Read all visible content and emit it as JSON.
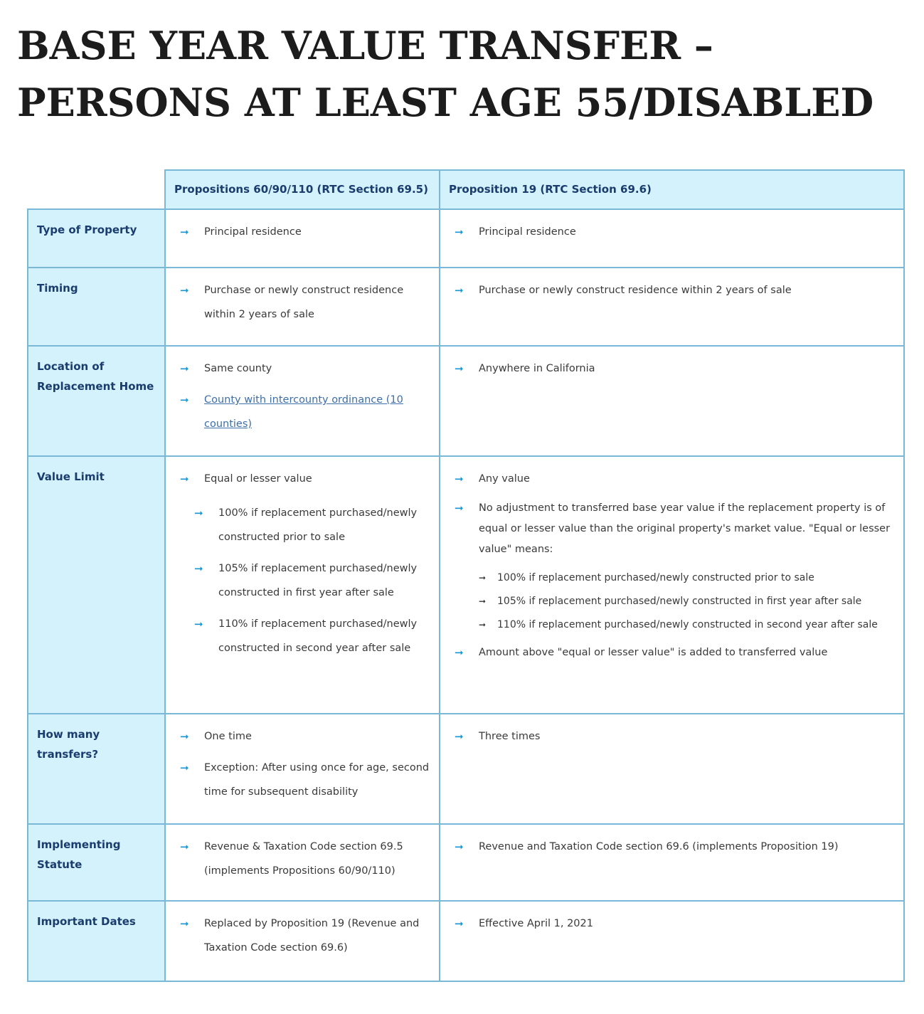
{
  "title": "BASE YEAR VALUE TRANSFER – PERSONS AT LEAST AGE 55/DISABLED",
  "columns": [
    "Propositions 60/90/110 (RTC Section 69.5)",
    "Proposition 19 (RTC Section 69.6)"
  ],
  "rows": [
    {
      "label": "Type of Property",
      "col1": [
        {
          "text": "Principal residence"
        }
      ],
      "col2": [
        {
          "text": "Principal residence"
        }
      ]
    },
    {
      "label": "Timing",
      "col1": [
        {
          "text": "Purchase or newly construct residence within 2 years of sale"
        }
      ],
      "col2": [
        {
          "text": "Purchase or newly construct residence within 2 years of sale"
        }
      ]
    },
    {
      "label": "Location of Replacement Home",
      "col1": [
        {
          "text": "Same county"
        },
        {
          "text": "County with intercounty ordinance (10 counties)"
        }
      ],
      "col2": [
        {
          "text": "Anywhere in California"
        }
      ]
    },
    {
      "label": "Value Limit",
      "col1": [
        {
          "text": "Equal or lesser value"
        },
        {
          "text": "100% if replacement purchased/newly constructed prior to sale"
        },
        {
          "text": "105% if replacement purchased/newly constructed in first year after sale"
        },
        {
          "text": "110% if replacement purchased/newly constructed in second year after sale"
        }
      ],
      "col2": [
        {
          "text": "Any value"
        },
        {
          "text": "No adjustment to transferred base year value if the replacement property is of equal or lesser value than the original property's market value. \"Equal or lesser value\" means:"
        },
        {
          "text": "100% if replacement purchased/newly constructed prior to sale"
        },
        {
          "text": "105% if replacement purchased/newly constructed in first year after sale"
        },
        {
          "text": "110% if replacement purchased/newly constructed in second year after sale"
        },
        {
          "text": "Amount above \"equal or lesser value\" is added to transferred value"
        }
      ]
    },
    {
      "label": "How many transfers?",
      "col1": [
        {
          "text": "One time"
        },
        {
          "text": "Exception:  After using once for age, second time for subsequent disability"
        }
      ],
      "col2": [
        {
          "text": "Three times"
        }
      ]
    },
    {
      "label": "Implementing Statute",
      "col1": [
        {
          "text": "Revenue & Taxation Code section 69.5 (implements Propositions 60/90/110)"
        }
      ],
      "col2": [
        {
          "text": "Revenue and Taxation Code section 69.6 (implements Proposition 19)"
        }
      ]
    },
    {
      "label": "Important Dates",
      "col1": [
        {
          "text": "Replaced by Proposition 19 (Revenue and Taxation Code section 69.6)"
        }
      ],
      "col2": [
        {
          "text": "Effective April 1, 2021"
        }
      ]
    }
  ],
  "icons": {
    "bullet": "arrow-right-icon",
    "arrow_glyph": "➞"
  },
  "colors": {
    "header_bg": "#d3f2fb",
    "border": "#79b8d6",
    "arrow": "#1896d2",
    "heading_text": "#1a3c6e"
  }
}
